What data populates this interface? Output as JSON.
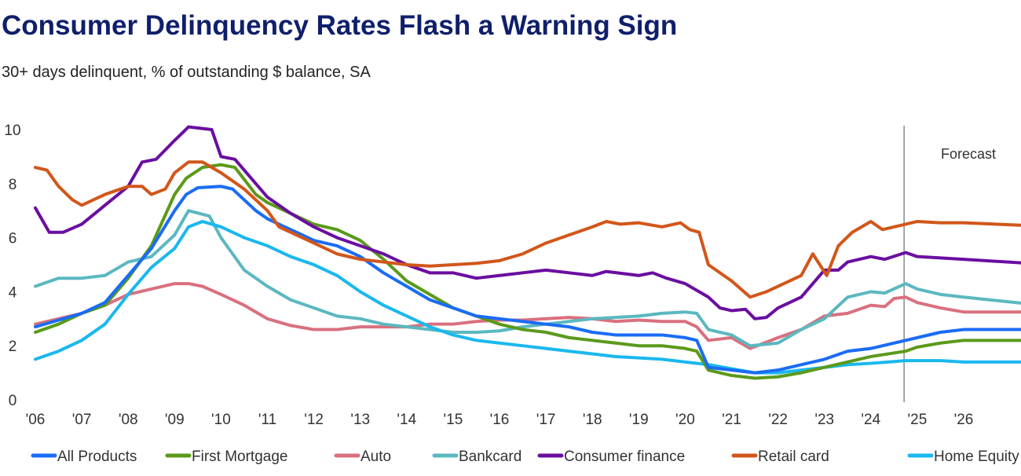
{
  "chart_data": {
    "type": "line",
    "title": "Consumer Delinquency Rates Flash a Warning Sign",
    "subtitle": "30+ days delinquent, % of outstanding $ balance, SA",
    "xlabel": "",
    "ylabel": "",
    "xlim": [
      2006,
      2026.9
    ],
    "ylim": [
      0,
      10
    ],
    "yticks": [
      0,
      2,
      4,
      6,
      8,
      10
    ],
    "xticks": [
      2006,
      2007,
      2008,
      2009,
      2010,
      2011,
      2012,
      2013,
      2014,
      2015,
      2016,
      2017,
      2018,
      2019,
      2020,
      2021,
      2022,
      2023,
      2024,
      2025,
      2026
    ],
    "xtick_labels": [
      "'06",
      "'07",
      "'08",
      "'09",
      "'10",
      "'11",
      "'12",
      "'13",
      "'14",
      "'15",
      "'16",
      "'17",
      "'18",
      "'19",
      "'20",
      "'21",
      "'22",
      "'23",
      "'24",
      "'25",
      "'26"
    ],
    "grid": false,
    "legend_position": "bottom",
    "annotations": [
      {
        "text": "Forecast",
        "x": 2024.75,
        "type": "vertical-line"
      }
    ],
    "series": [
      {
        "name": "All Products",
        "color": "#1a6cf5",
        "x": [
          2006,
          2007,
          2007.5,
          2008,
          2008.5,
          2009,
          2009.25,
          2009.5,
          2010,
          2010.25,
          2010.75,
          2011,
          2011.5,
          2012,
          2012.5,
          2013,
          2013.5,
          2014,
          2014.5,
          2015,
          2015.5,
          2016,
          2016.5,
          2017,
          2017.5,
          2018,
          2018.5,
          2019,
          2019.5,
          2020,
          2020.25,
          2020.5,
          2021,
          2021.5,
          2022,
          2022.5,
          2023,
          2023.5,
          2024,
          2024.75,
          2025,
          2025.5,
          2026,
          2026.9
        ],
        "y": [
          2.7,
          3.2,
          3.6,
          4.6,
          5.6,
          7.0,
          7.6,
          7.85,
          7.9,
          7.8,
          7.0,
          6.7,
          6.3,
          5.9,
          5.7,
          5.3,
          4.7,
          4.2,
          3.7,
          3.4,
          3.1,
          3.0,
          2.9,
          2.8,
          2.7,
          2.5,
          2.4,
          2.4,
          2.4,
          2.3,
          2.2,
          1.2,
          1.1,
          1.0,
          1.1,
          1.3,
          1.5,
          1.8,
          1.9,
          2.2,
          2.3,
          2.5,
          2.6,
          2.6
        ]
      },
      {
        "name": "First Mortgage",
        "color": "#5a9a1a",
        "x": [
          2006,
          2006.5,
          2007,
          2007.5,
          2008,
          2008.5,
          2009,
          2009.25,
          2009.6,
          2010,
          2010.3,
          2010.75,
          2011,
          2011.5,
          2012,
          2012.5,
          2013,
          2013.5,
          2014,
          2014.5,
          2015,
          2015.5,
          2016,
          2016.5,
          2017,
          2017.5,
          2018,
          2018.5,
          2019,
          2019.5,
          2020,
          2020.25,
          2020.5,
          2021,
          2021.5,
          2022,
          2022.5,
          2023,
          2023.5,
          2024,
          2024.75,
          2025,
          2025.5,
          2026,
          2026.9
        ],
        "y": [
          2.5,
          2.8,
          3.2,
          3.5,
          4.5,
          5.7,
          7.6,
          8.2,
          8.6,
          8.7,
          8.6,
          7.6,
          7.3,
          6.9,
          6.5,
          6.3,
          5.9,
          5.2,
          4.4,
          3.9,
          3.4,
          3.1,
          2.8,
          2.6,
          2.5,
          2.3,
          2.2,
          2.1,
          2.0,
          2.0,
          1.9,
          1.8,
          1.1,
          0.9,
          0.8,
          0.85,
          1.0,
          1.2,
          1.4,
          1.6,
          1.8,
          1.95,
          2.1,
          2.2,
          2.2
        ]
      },
      {
        "name": "Auto",
        "color": "#d9707f",
        "x": [
          2006,
          2006.5,
          2007,
          2007.5,
          2008,
          2008.5,
          2009,
          2009.3,
          2009.6,
          2010,
          2010.5,
          2011,
          2011.5,
          2012,
          2012.5,
          2013,
          2013.5,
          2014,
          2014.5,
          2015,
          2015.5,
          2016,
          2016.5,
          2017,
          2017.5,
          2018,
          2018.5,
          2019,
          2019.5,
          2020,
          2020.25,
          2020.5,
          2021,
          2021.4,
          2022,
          2022.5,
          2023,
          2023.5,
          2024,
          2024.3,
          2024.5,
          2024.75,
          2025,
          2025.5,
          2026,
          2026.9
        ],
        "y": [
          2.8,
          3.0,
          3.2,
          3.5,
          3.9,
          4.1,
          4.3,
          4.3,
          4.2,
          3.9,
          3.5,
          3.0,
          2.75,
          2.6,
          2.6,
          2.7,
          2.7,
          2.7,
          2.8,
          2.8,
          2.9,
          2.95,
          2.95,
          3.0,
          3.05,
          3.0,
          2.9,
          2.95,
          2.9,
          2.9,
          2.7,
          2.2,
          2.3,
          1.9,
          2.3,
          2.6,
          3.1,
          3.2,
          3.5,
          3.45,
          3.75,
          3.8,
          3.6,
          3.4,
          3.25,
          3.25
        ]
      },
      {
        "name": "Bankcard",
        "color": "#5bb8c0",
        "x": [
          2006,
          2006.5,
          2007,
          2007.5,
          2008,
          2008.5,
          2009,
          2009.3,
          2009.75,
          2010,
          2010.5,
          2011,
          2011.5,
          2012,
          2012.5,
          2013,
          2013.5,
          2014,
          2014.5,
          2015,
          2015.5,
          2016,
          2016.5,
          2017,
          2017.5,
          2018,
          2018.5,
          2019,
          2019.5,
          2020,
          2020.25,
          2020.5,
          2021,
          2021.4,
          2022,
          2022.5,
          2023,
          2023.5,
          2024,
          2024.3,
          2024.75,
          2025,
          2025.5,
          2026,
          2026.9
        ],
        "y": [
          4.2,
          4.5,
          4.5,
          4.6,
          5.1,
          5.3,
          6.1,
          7.0,
          6.8,
          6.0,
          4.8,
          4.2,
          3.7,
          3.4,
          3.1,
          3.0,
          2.8,
          2.7,
          2.6,
          2.5,
          2.5,
          2.55,
          2.7,
          2.8,
          2.9,
          3.0,
          3.05,
          3.1,
          3.2,
          3.25,
          3.2,
          2.6,
          2.4,
          2.0,
          2.1,
          2.6,
          3.0,
          3.8,
          4.0,
          3.95,
          4.3,
          4.1,
          3.9,
          3.8,
          3.55
        ]
      },
      {
        "name": "Consumer finance",
        "color": "#6a0ea0",
        "x": [
          2006,
          2006.3,
          2006.6,
          2007,
          2007.5,
          2008,
          2008.3,
          2008.6,
          2009,
          2009.3,
          2009.8,
          2010,
          2010.3,
          2010.75,
          2011,
          2011.5,
          2012,
          2012.5,
          2013,
          2013.5,
          2014,
          2014.5,
          2015,
          2015.5,
          2016,
          2016.5,
          2017,
          2017.5,
          2018,
          2018.3,
          2019,
          2019.3,
          2019.6,
          2020,
          2020.5,
          2020.75,
          2021,
          2021.3,
          2021.5,
          2021.75,
          2022,
          2022.5,
          2023,
          2023.3,
          2023.5,
          2024,
          2024.3,
          2024.75,
          2025,
          2025.5,
          2026,
          2026.9
        ],
        "y": [
          7.1,
          6.2,
          6.2,
          6.5,
          7.2,
          7.9,
          8.8,
          8.9,
          9.6,
          10.1,
          10.0,
          9.0,
          8.9,
          8.0,
          7.5,
          6.9,
          6.4,
          6.0,
          5.7,
          5.4,
          5.0,
          4.7,
          4.7,
          4.5,
          4.6,
          4.7,
          4.8,
          4.7,
          4.6,
          4.75,
          4.6,
          4.7,
          4.5,
          4.3,
          3.8,
          3.4,
          3.3,
          3.35,
          3.0,
          3.05,
          3.4,
          3.8,
          4.8,
          4.8,
          5.1,
          5.3,
          5.2,
          5.45,
          5.3,
          5.25,
          5.2,
          5.05
        ]
      },
      {
        "name": "Retail card",
        "color": "#d2561a",
        "x": [
          2006,
          2006.25,
          2006.5,
          2006.8,
          2007,
          2007.5,
          2008,
          2008.3,
          2008.5,
          2008.8,
          2009,
          2009.3,
          2009.6,
          2010,
          2010.5,
          2011,
          2011.25,
          2011.5,
          2012,
          2012.5,
          2013,
          2013.5,
          2014,
          2014.5,
          2015,
          2015.5,
          2016,
          2016.5,
          2017,
          2017.5,
          2018,
          2018.3,
          2018.6,
          2019,
          2019.5,
          2019.9,
          2020.1,
          2020.3,
          2020.5,
          2021,
          2021.4,
          2021.75,
          2022,
          2022.5,
          2022.75,
          2023.05,
          2023.3,
          2023.6,
          2024,
          2024.25,
          2024.75,
          2025,
          2025.5,
          2026,
          2026.9
        ],
        "y": [
          8.6,
          8.5,
          7.9,
          7.4,
          7.2,
          7.6,
          7.9,
          7.9,
          7.6,
          7.8,
          8.4,
          8.8,
          8.8,
          8.4,
          7.8,
          7.0,
          6.4,
          6.2,
          5.8,
          5.4,
          5.2,
          5.1,
          5.0,
          4.95,
          5.0,
          5.05,
          5.15,
          5.4,
          5.8,
          6.1,
          6.4,
          6.6,
          6.5,
          6.55,
          6.4,
          6.55,
          6.3,
          6.2,
          5.0,
          4.4,
          3.8,
          4.0,
          4.2,
          4.6,
          5.4,
          4.6,
          5.7,
          6.2,
          6.6,
          6.3,
          6.5,
          6.6,
          6.55,
          6.55,
          6.45
        ]
      },
      {
        "name": "Home Equity",
        "color": "#1ab8ee",
        "x": [
          2006,
          2006.5,
          2007,
          2007.5,
          2008,
          2008.5,
          2009,
          2009.3,
          2009.6,
          2010,
          2010.5,
          2011,
          2011.5,
          2012,
          2012.5,
          2013,
          2013.5,
          2014,
          2014.5,
          2015,
          2015.5,
          2016,
          2016.5,
          2017,
          2017.5,
          2018,
          2018.5,
          2019,
          2019.5,
          2020,
          2020.5,
          2021,
          2021.5,
          2022,
          2022.5,
          2023,
          2023.5,
          2024,
          2024.75,
          2025,
          2025.5,
          2026,
          2026.9
        ],
        "y": [
          1.5,
          1.8,
          2.2,
          2.8,
          3.9,
          4.9,
          5.6,
          6.4,
          6.6,
          6.4,
          6.0,
          5.7,
          5.3,
          5.0,
          4.6,
          4.0,
          3.5,
          3.1,
          2.7,
          2.4,
          2.2,
          2.1,
          2.0,
          1.9,
          1.8,
          1.7,
          1.6,
          1.55,
          1.5,
          1.4,
          1.3,
          1.15,
          1.0,
          1.0,
          1.1,
          1.2,
          1.3,
          1.35,
          1.45,
          1.45,
          1.45,
          1.4,
          1.4
        ]
      }
    ]
  }
}
